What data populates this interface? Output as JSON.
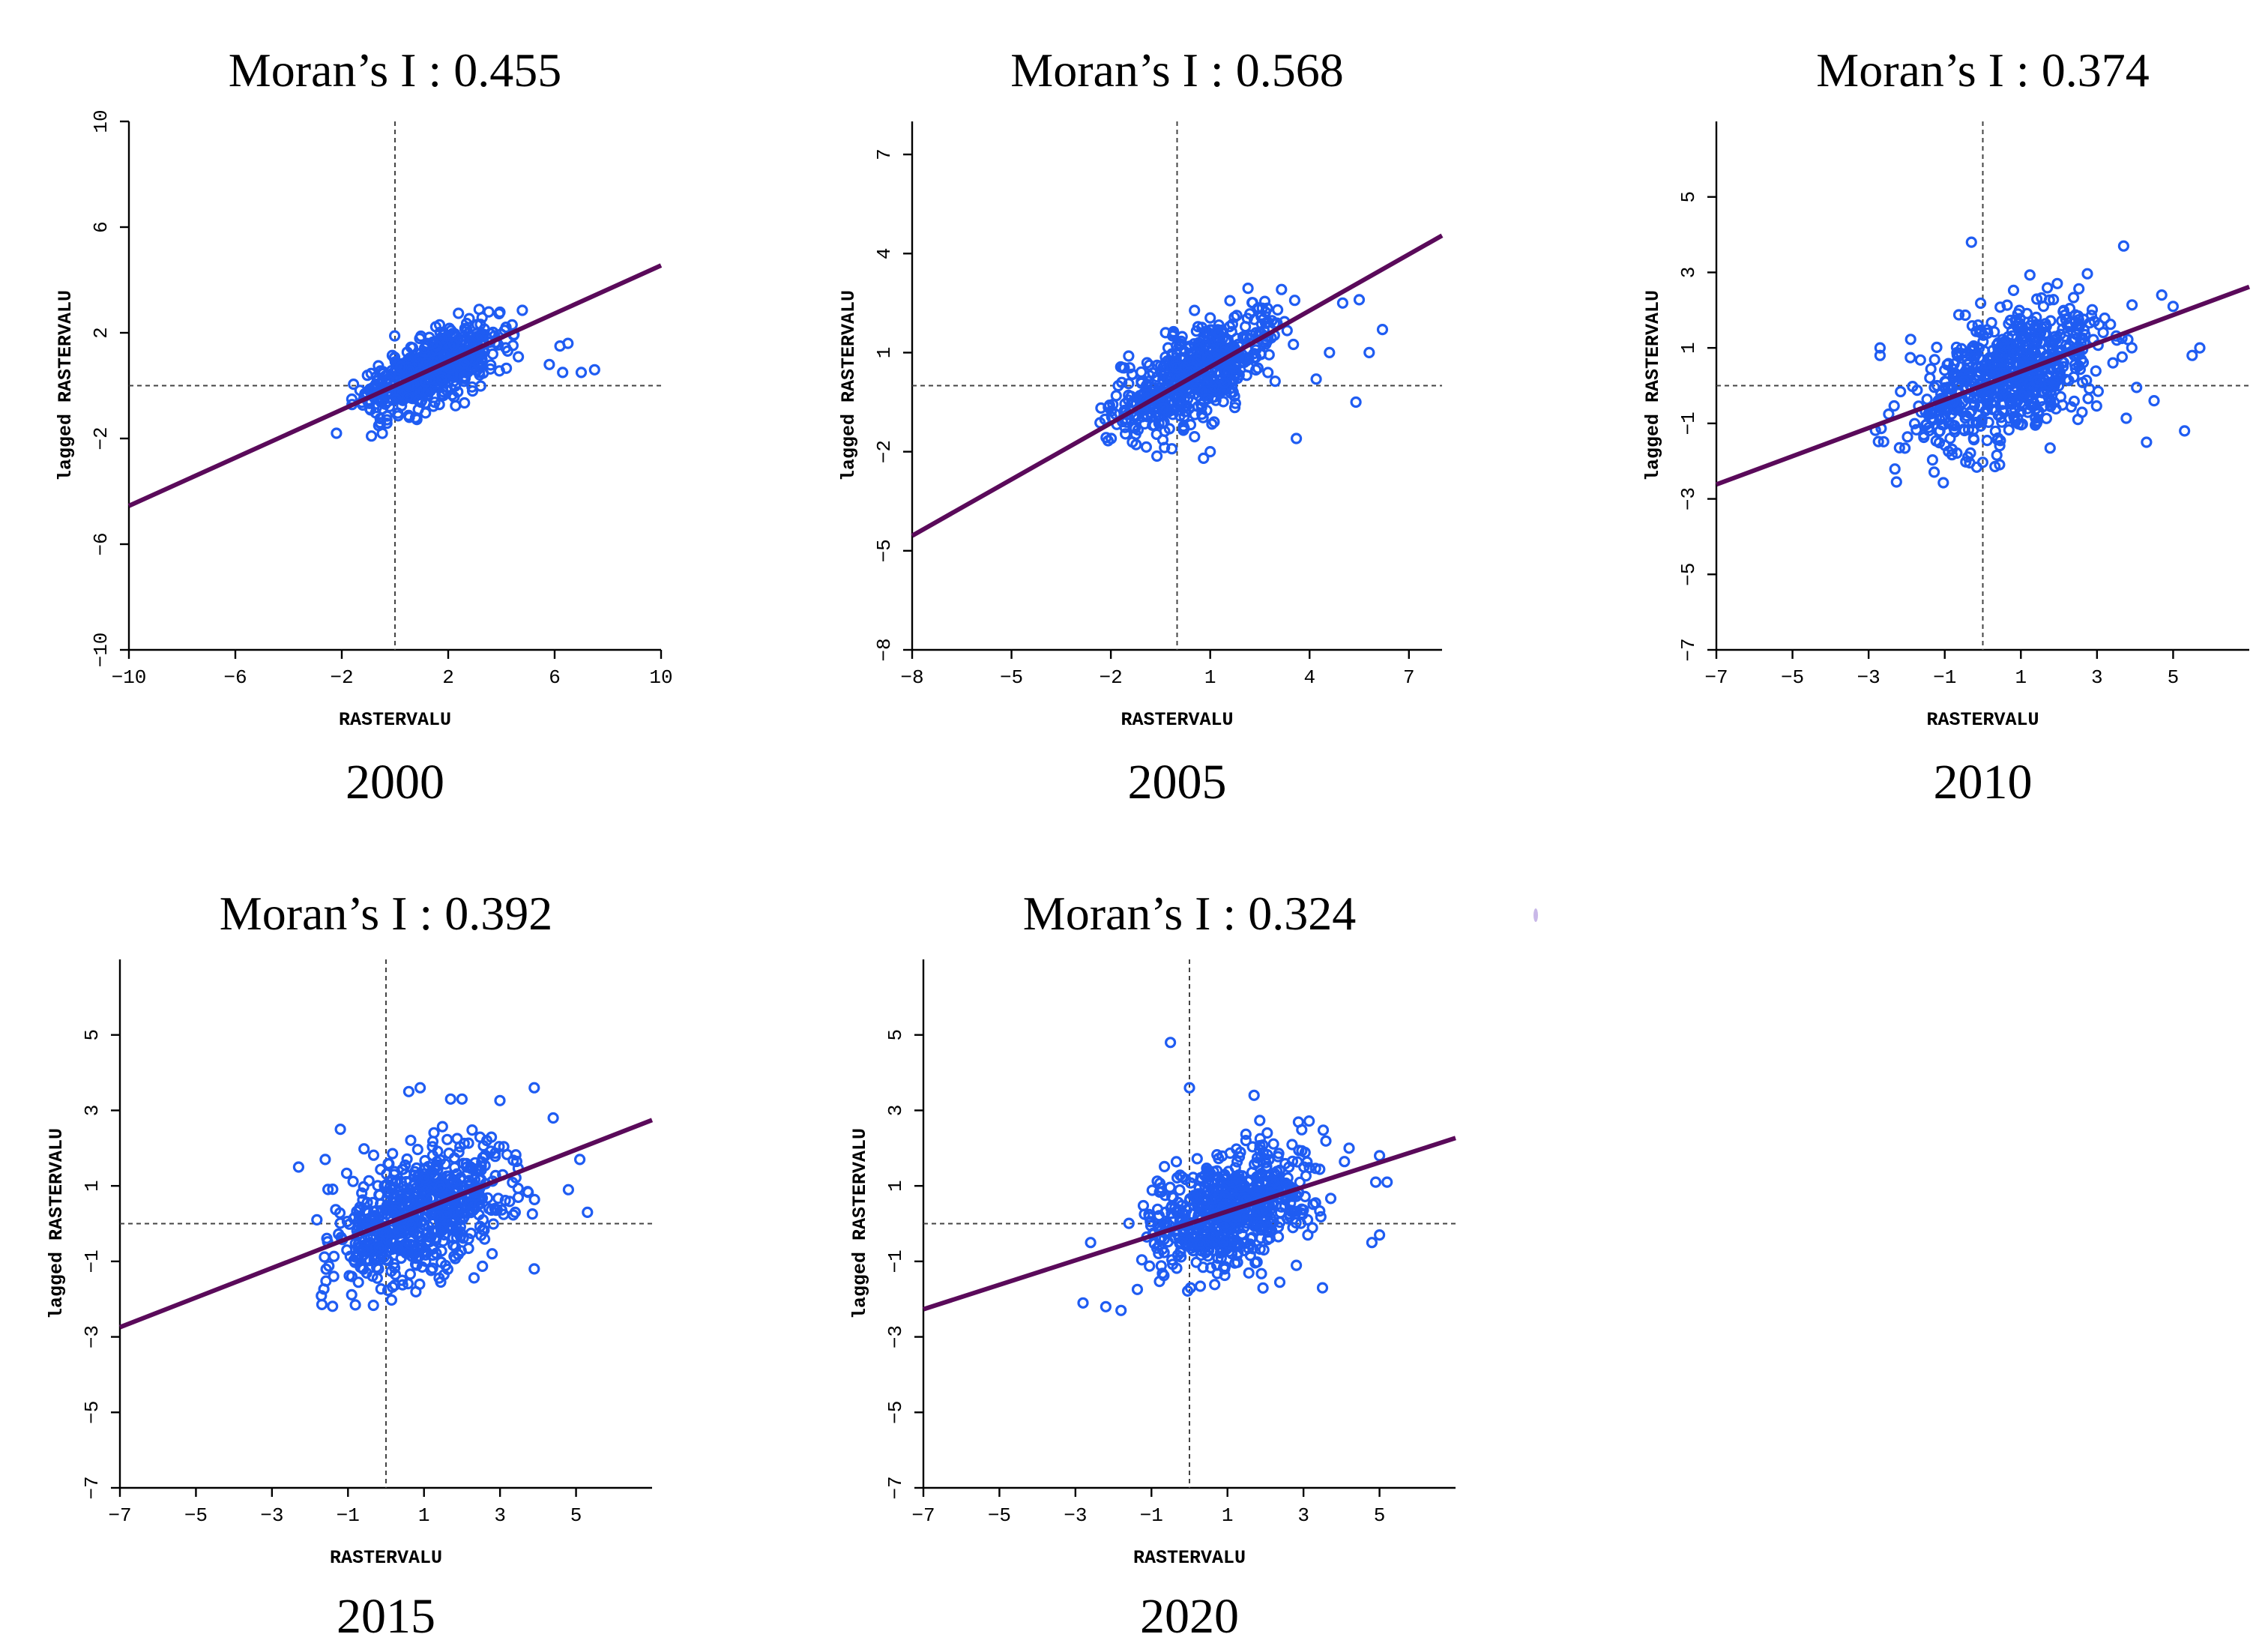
{
  "figure": {
    "stray_mark_color": "#c9b8e8",
    "point_color": "#1f5cf2",
    "line_color": "#5a0a5a"
  },
  "chart_data": [
    {
      "type": "scatter",
      "title": "Moran’s I : 0.455",
      "moran_i": 0.455,
      "year": "2000",
      "xlabel": "RASTERVALU",
      "ylabel": "lagged RASTERVALU",
      "xlim": [
        -10,
        10
      ],
      "ylim": [
        -10,
        10
      ],
      "xticks": [
        -10,
        -6,
        -2,
        2,
        6,
        10
      ],
      "yticks": [
        -10,
        -6,
        -2,
        2,
        6,
        10
      ],
      "reference_lines": {
        "x": 0,
        "y": 0
      },
      "regression": {
        "slope": 0.455,
        "intercept": 0
      },
      "cloud": {
        "x_min": -2.3,
        "x_max": 5.2,
        "resid_sd": 0.75,
        "y_min": -1.95,
        "y_max": 2.9,
        "count": 560
      },
      "outliers": [
        [
          7.5,
          0.6
        ],
        [
          7.0,
          0.5
        ],
        [
          6.5,
          1.6
        ],
        [
          6.2,
          1.5
        ],
        [
          5.8,
          0.8
        ],
        [
          6.3,
          0.5
        ],
        [
          -2.2,
          -1.8
        ]
      ]
    },
    {
      "type": "scatter",
      "title": "Moran’s I : 0.568",
      "moran_i": 0.568,
      "year": "2005",
      "xlabel": "RASTERVALU",
      "ylabel": "lagged RASTERVALU",
      "xlim": [
        -8,
        8
      ],
      "ylim": [
        -8,
        8
      ],
      "xticks": [
        -8,
        -5,
        -2,
        1,
        4,
        7
      ],
      "yticks": [
        -8,
        -5,
        -2,
        1,
        4,
        7
      ],
      "reference_lines": {
        "x": 0,
        "y": 0
      },
      "regression": {
        "slope": 0.568,
        "intercept": 0
      },
      "cloud": {
        "x_min": -2.9,
        "x_max": 3.8,
        "resid_sd": 0.75,
        "y_min": -2.6,
        "y_max": 3.0,
        "count": 560
      },
      "outliers": [
        [
          6.2,
          1.7
        ],
        [
          5.5,
          2.6
        ],
        [
          5.0,
          2.5
        ],
        [
          5.8,
          1.0
        ],
        [
          5.4,
          -0.5
        ],
        [
          4.6,
          1.0
        ],
        [
          3.6,
          -1.6
        ],
        [
          4.2,
          0.2
        ],
        [
          0.8,
          -2.2
        ],
        [
          1.0,
          -2.0
        ]
      ]
    },
    {
      "type": "scatter",
      "title": "Moran’s I : 0.374",
      "moran_i": 0.374,
      "year": "2010",
      "xlabel": "RASTERVALU",
      "ylabel": "lagged RASTERVALU",
      "xlim": [
        -7,
        7
      ],
      "ylim": [
        -7,
        7
      ],
      "xticks": [
        -7,
        -5,
        -3,
        -1,
        1,
        3,
        5
      ],
      "yticks": [
        -7,
        -5,
        -3,
        -1,
        1,
        3,
        5
      ],
      "reference_lines": {
        "x": 0,
        "y": 0
      },
      "regression": {
        "slope": 0.374,
        "intercept": 0
      },
      "cloud": {
        "x_min": -3.1,
        "x_max": 4.4,
        "resid_sd": 0.95,
        "y_min": -2.6,
        "y_max": 3.1,
        "count": 680
      },
      "outliers": [
        [
          -0.3,
          3.8
        ],
        [
          3.7,
          3.7
        ],
        [
          5.7,
          1.0
        ],
        [
          5.5,
          0.8
        ],
        [
          5.3,
          -1.2
        ],
        [
          4.7,
          2.4
        ],
        [
          5.0,
          2.1
        ],
        [
          4.5,
          -0.4
        ],
        [
          4.3,
          -1.5
        ],
        [
          -2.7,
          1.0
        ],
        [
          -2.7,
          0.8
        ]
      ]
    },
    {
      "type": "scatter",
      "title": "Moran’s I : 0.392",
      "moran_i": 0.392,
      "year": "2015",
      "xlabel": "RASTERVALU",
      "ylabel": "lagged RASTERVALU",
      "xlim": [
        -7,
        7
      ],
      "ylim": [
        -7,
        7
      ],
      "xticks": [
        -7,
        -5,
        -3,
        -1,
        1,
        3,
        5
      ],
      "yticks": [
        -7,
        -5,
        -3,
        -1,
        1,
        3,
        5
      ],
      "reference_lines": {
        "x": 0,
        "y": 0
      },
      "regression": {
        "slope": 0.392,
        "intercept": 0
      },
      "cloud": {
        "x_min": -2.4,
        "x_max": 4.3,
        "resid_sd": 0.9,
        "y_min": -2.2,
        "y_max": 3.3,
        "count": 680
      },
      "outliers": [
        [
          0.9,
          3.6
        ],
        [
          0.6,
          3.5
        ],
        [
          3.9,
          3.6
        ],
        [
          1.7,
          3.3
        ],
        [
          2.0,
          3.3
        ],
        [
          4.4,
          2.8
        ],
        [
          5.1,
          1.7
        ],
        [
          5.3,
          0.3
        ],
        [
          4.8,
          0.9
        ],
        [
          3.9,
          -1.2
        ],
        [
          -2.3,
          1.5
        ],
        [
          -1.6,
          1.7
        ],
        [
          -1.2,
          2.5
        ]
      ]
    },
    {
      "type": "scatter",
      "title": "Moran’s I : 0.324",
      "moran_i": 0.324,
      "year": "2020",
      "xlabel": "RASTERVALU",
      "ylabel": "lagged RASTERVALU",
      "xlim": [
        -7,
        7
      ],
      "ylim": [
        -7,
        7
      ],
      "xticks": [
        -7,
        -5,
        -3,
        -1,
        1,
        3,
        5
      ],
      "yticks": [
        -7,
        -5,
        -3,
        -1,
        1,
        3,
        5
      ],
      "reference_lines": {
        "x": 0,
        "y": 0
      },
      "regression": {
        "slope": 0.324,
        "intercept": 0
      },
      "cloud": {
        "x_min": -2.3,
        "x_max": 4.3,
        "resid_sd": 0.9,
        "y_min": -1.9,
        "y_max": 3.0,
        "count": 640
      },
      "outliers": [
        [
          -0.5,
          4.8
        ],
        [
          0.0,
          3.6
        ],
        [
          1.7,
          3.4
        ],
        [
          4.2,
          2.0
        ],
        [
          5.0,
          1.8
        ],
        [
          5.2,
          1.1
        ],
        [
          4.9,
          1.1
        ],
        [
          5.0,
          -0.3
        ],
        [
          4.8,
          -0.5
        ],
        [
          3.5,
          -1.7
        ],
        [
          -2.8,
          -2.1
        ],
        [
          -2.2,
          -2.2
        ],
        [
          -1.8,
          -2.3
        ],
        [
          -2.6,
          -0.5
        ]
      ]
    }
  ]
}
